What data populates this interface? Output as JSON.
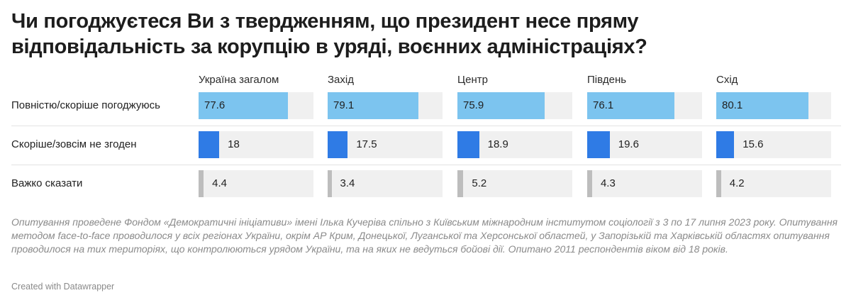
{
  "title": "Чи погоджуєтеся Ви з твердженням, що президент несе пряму відповідальність за корупцію в уряді, воєнних адміністраціях?",
  "chart_data": {
    "type": "bar",
    "title": "Чи погоджуєтеся Ви з твердженням, що президент несе пряму відповідальність за корупцію в уряді, воєнних адміністраціях?",
    "categories": [
      "Україна загалом",
      "Захід",
      "Центр",
      "Південь",
      "Схід"
    ],
    "series": [
      {
        "name": "Повністю/скоріше погоджуюсь",
        "values": [
          77.6,
          79.1,
          75.9,
          76.1,
          80.1
        ],
        "labels": [
          "77.6",
          "79.1",
          "75.9",
          "76.1",
          "80.1"
        ],
        "color": "#7cc4ef"
      },
      {
        "name": "Скоріше/зовсім не згоден",
        "values": [
          18,
          17.5,
          18.9,
          19.6,
          15.6
        ],
        "labels": [
          "18",
          "17.5",
          "18.9",
          "19.6",
          "15.6"
        ],
        "color": "#2f7be5"
      },
      {
        "name": "Важко сказати",
        "values": [
          4.4,
          3.4,
          5.2,
          4.3,
          4.2
        ],
        "labels": [
          "4.4",
          "3.4",
          "5.2",
          "4.3",
          "4.2"
        ],
        "color": "#bdbdbd"
      }
    ],
    "xlim": [
      0,
      100
    ],
    "layout": "small-multiples"
  },
  "footnote": "Опитування проведене Фондом «Демократичні ініціативи» імені Ілька Кучеріва спільно з Київським міжнародним інститутом соціології з 3 по 17 липня 2023 року. Опитування методом face-to-face проводилося у всіх регіонах України, окрім АР Крим, Донецької, Луганської та Херсонської областей, у Запорізькій та Харківській областях опитування проводилося на тих територіях, що контролюються урядом України, та на яких не ведуться бойові дії. Опитано 2011 респондентів віком від 18 років.",
  "credit": "Created with Datawrapper"
}
